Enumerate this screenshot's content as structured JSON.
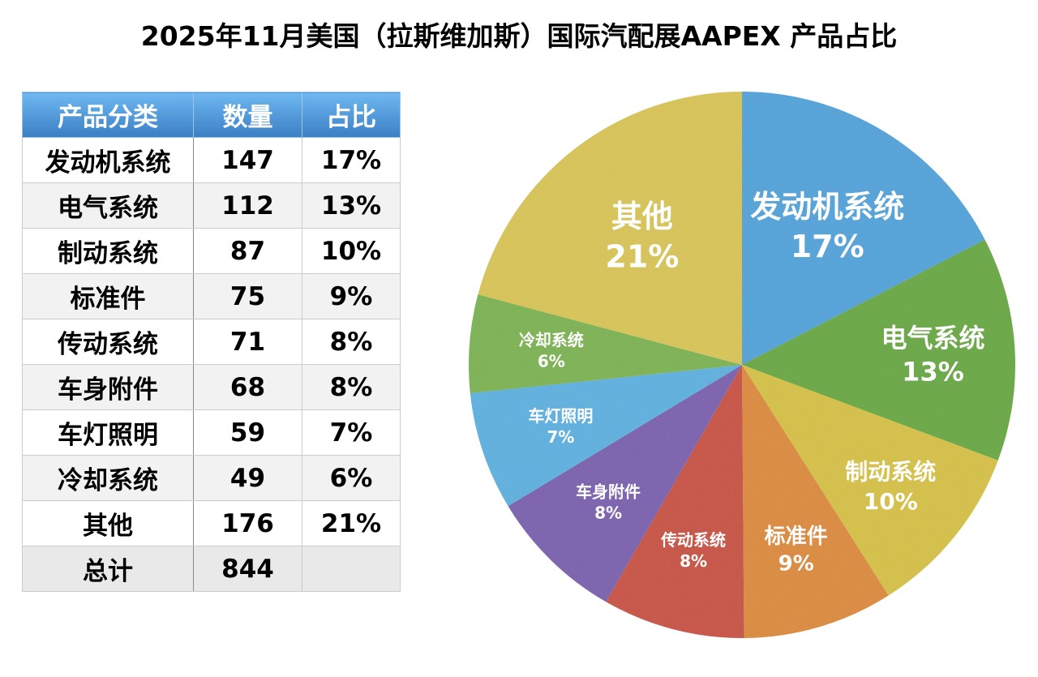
{
  "title": "2025年11月美国（拉斯维加斯）国际汽配展AAPEX 产品占比",
  "table": {
    "headers": [
      "产品分类",
      "数量",
      "占比"
    ],
    "rows": [
      [
        "发动机系统",
        "147",
        "17%"
      ],
      [
        "电气系统",
        "112",
        "13%"
      ],
      [
        "制动系统",
        "87",
        "10%"
      ],
      [
        "标准件",
        "75",
        "9%"
      ],
      [
        "传动系统",
        "71",
        "8%"
      ],
      [
        "车身附件",
        "68",
        "8%"
      ],
      [
        "车灯照明",
        "59",
        "7%"
      ],
      [
        "冷却系统",
        "49",
        "6%"
      ],
      [
        "其他",
        "176",
        "21%"
      ]
    ],
    "total": [
      "总计",
      "844",
      ""
    ]
  },
  "chart_data": {
    "type": "pie",
    "title": "2025年11月美国（拉斯维加斯）国际汽配展AAPEX 产品占比",
    "start": "12 o'clock, clockwise",
    "categories": [
      "发动机系统",
      "电气系统",
      "制动系统",
      "标准件",
      "传动系统",
      "车身附件",
      "车灯照明",
      "冷却系统",
      "其他"
    ],
    "values": [
      147,
      112,
      87,
      75,
      71,
      68,
      59,
      49,
      176
    ],
    "labels": [
      "17%",
      "13%",
      "10%",
      "9%",
      "8%",
      "8%",
      "7%",
      "6%",
      "21%"
    ],
    "colors": [
      "#4fa3da",
      "#68a83c",
      "#d6c140",
      "#dc8a36",
      "#c8503e",
      "#7a5eae",
      "#5bb0e0",
      "#7bb350",
      "#d8c452"
    ]
  }
}
